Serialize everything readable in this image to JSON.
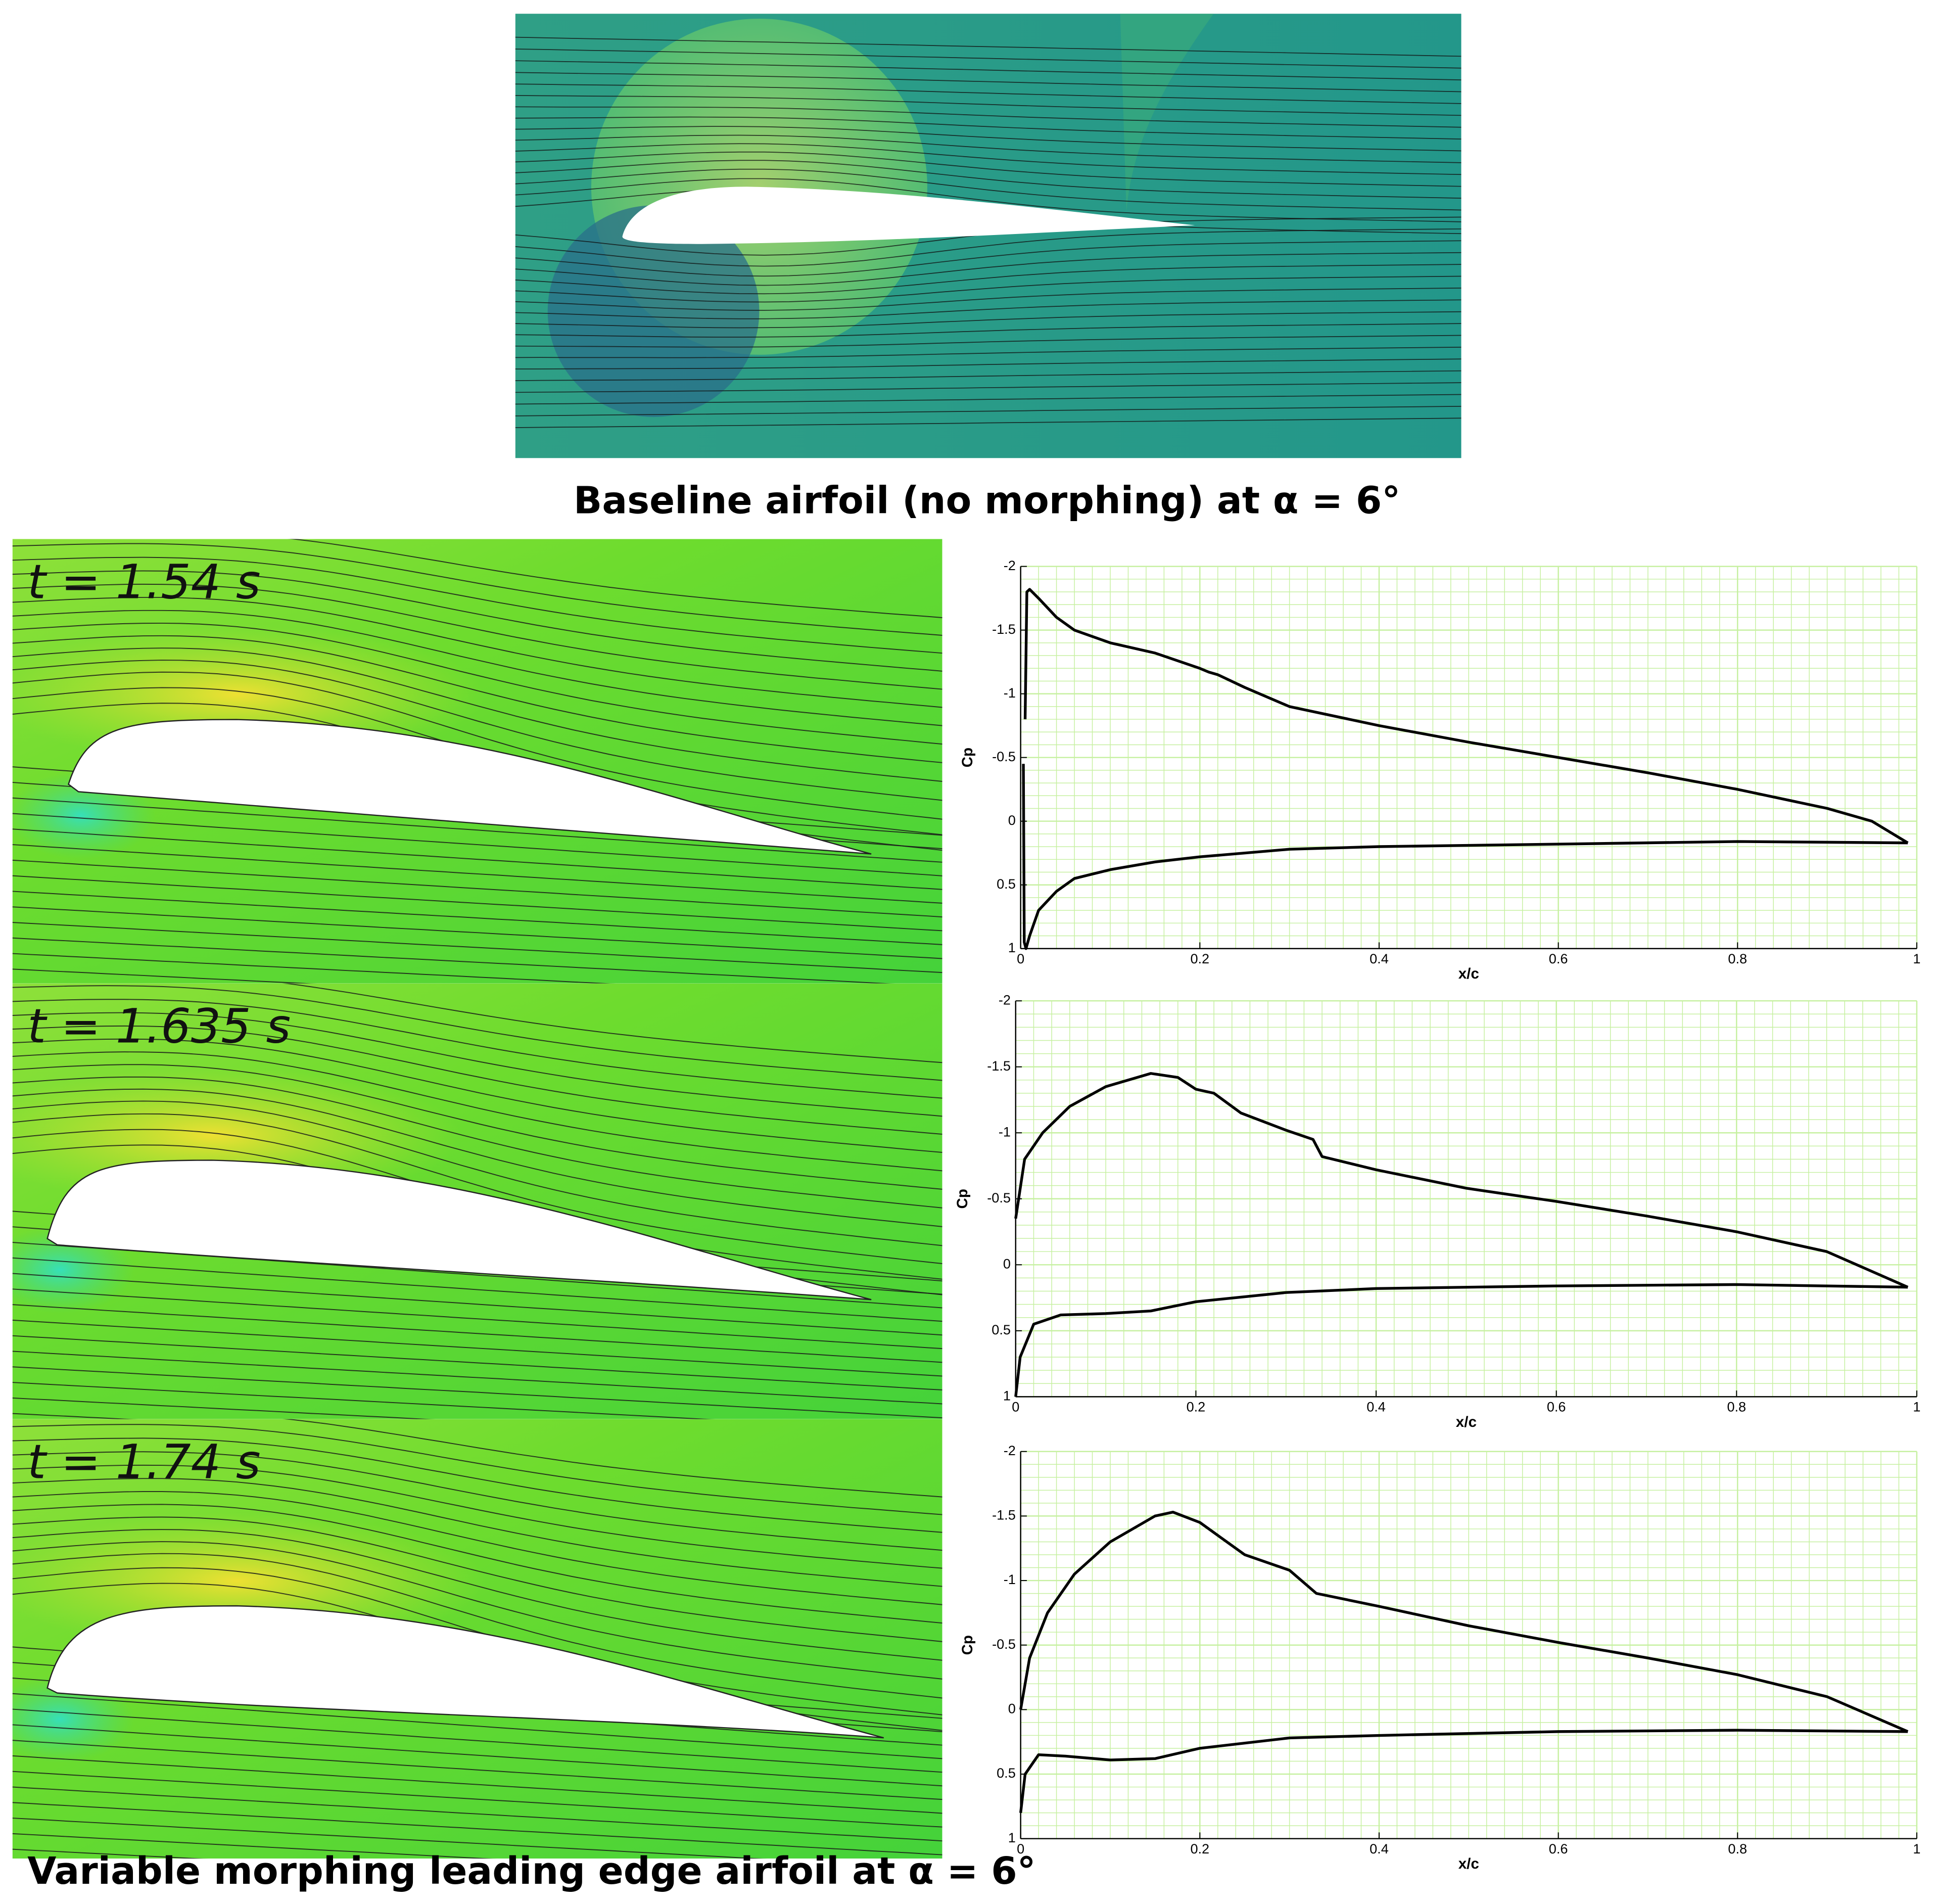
{
  "figure": {
    "top_caption": "Baseline airfoil (no morphing) at α = 6°",
    "bottom_caption": "Variable morphing leading edge airfoil at α = 6°",
    "time_labels": [
      "t = 1.54 s",
      "t = 1.635 s",
      "t = 1.74 s"
    ]
  },
  "chart_data": [
    {
      "type": "line",
      "x_label": "x/c",
      "y_label": "Cp",
      "xlim": [
        0,
        1
      ],
      "ylim": [
        1,
        -2
      ],
      "xticks": [
        0,
        0.2,
        0.4,
        0.6,
        0.8,
        1
      ],
      "yticks": [
        -2,
        -1.5,
        -1,
        -0.5,
        0,
        0.5,
        1
      ],
      "grid": true,
      "grid_color": "#c6f0a0",
      "series": [
        {
          "color": "#000000",
          "x": [
            0.005,
            0.007,
            0.01,
            0.02,
            0.04,
            0.06,
            0.1,
            0.15,
            0.2,
            0.21,
            0.22,
            0.25,
            0.3,
            0.4,
            0.5,
            0.6,
            0.7,
            0.8,
            0.9,
            0.95,
            0.99
          ],
          "values": [
            -0.8,
            -1.8,
            -1.82,
            -1.75,
            -1.6,
            -1.5,
            -1.4,
            -1.32,
            -1.2,
            -1.17,
            -1.15,
            -1.05,
            -0.9,
            -0.75,
            -0.62,
            -0.5,
            -0.38,
            -0.25,
            -0.1,
            0,
            0.17
          ]
        },
        {
          "color": "#000000",
          "x": [
            0.003,
            0.004,
            0.006,
            0.01,
            0.02,
            0.04,
            0.06,
            0.1,
            0.15,
            0.2,
            0.3,
            0.4,
            0.6,
            0.8,
            0.99
          ],
          "values": [
            -0.45,
            0.95,
            1.0,
            0.9,
            0.7,
            0.55,
            0.45,
            0.38,
            0.32,
            0.28,
            0.22,
            0.2,
            0.18,
            0.16,
            0.17
          ]
        }
      ]
    },
    {
      "type": "line",
      "x_label": "x/c",
      "y_label": "Cp",
      "xlim": [
        0,
        1
      ],
      "ylim": [
        1,
        -2
      ],
      "xticks": [
        0,
        0.2,
        0.4,
        0.6,
        0.8,
        1
      ],
      "yticks": [
        -2,
        -1.5,
        -1,
        -0.5,
        0,
        0.5,
        1
      ],
      "grid": true,
      "grid_color": "#c6f0a0",
      "series": [
        {
          "color": "#000000",
          "x": [
            0,
            0.01,
            0.03,
            0.06,
            0.1,
            0.15,
            0.18,
            0.2,
            0.22,
            0.25,
            0.3,
            0.33,
            0.34,
            0.4,
            0.5,
            0.6,
            0.7,
            0.8,
            0.9,
            0.99
          ],
          "values": [
            -0.35,
            -0.8,
            -1.0,
            -1.2,
            -1.35,
            -1.45,
            -1.42,
            -1.33,
            -1.3,
            -1.15,
            -1.02,
            -0.95,
            -0.82,
            -0.72,
            -0.58,
            -0.48,
            -0.37,
            -0.25,
            -0.1,
            0.17
          ]
        },
        {
          "color": "#000000",
          "x": [
            0,
            0.005,
            0.02,
            0.05,
            0.1,
            0.15,
            0.2,
            0.3,
            0.4,
            0.6,
            0.8,
            0.99
          ],
          "values": [
            1.0,
            0.7,
            0.45,
            0.38,
            0.37,
            0.35,
            0.28,
            0.21,
            0.18,
            0.16,
            0.15,
            0.17
          ]
        }
      ]
    },
    {
      "type": "line",
      "x_label": "x/c",
      "y_label": "Cp",
      "xlim": [
        0,
        1
      ],
      "ylim": [
        1,
        -2
      ],
      "xticks": [
        0,
        0.2,
        0.4,
        0.6,
        0.8,
        1
      ],
      "yticks": [
        -2,
        -1.5,
        -1,
        -0.5,
        0,
        0.5,
        1
      ],
      "grid": true,
      "grid_color": "#c6f0a0",
      "series": [
        {
          "color": "#000000",
          "x": [
            0,
            0.01,
            0.03,
            0.06,
            0.1,
            0.15,
            0.17,
            0.2,
            0.22,
            0.25,
            0.3,
            0.33,
            0.4,
            0.5,
            0.6,
            0.7,
            0.8,
            0.9,
            0.99
          ],
          "values": [
            0.0,
            -0.4,
            -0.75,
            -1.05,
            -1.3,
            -1.5,
            -1.53,
            -1.45,
            -1.35,
            -1.2,
            -1.08,
            -0.9,
            -0.8,
            -0.65,
            -0.52,
            -0.4,
            -0.27,
            -0.1,
            0.17
          ]
        },
        {
          "color": "#000000",
          "x": [
            0,
            0.005,
            0.02,
            0.05,
            0.1,
            0.15,
            0.2,
            0.3,
            0.4,
            0.6,
            0.8,
            0.99
          ],
          "values": [
            0.8,
            0.5,
            0.35,
            0.36,
            0.39,
            0.38,
            0.3,
            0.22,
            0.2,
            0.17,
            0.16,
            0.17
          ]
        }
      ]
    }
  ]
}
